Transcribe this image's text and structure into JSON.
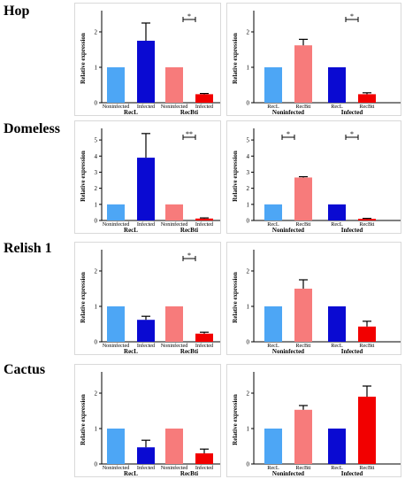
{
  "colors": {
    "light_blue": "#4da6f5",
    "dark_blue": "#0a0ad2",
    "light_red": "#f77b7b",
    "red": "#f20000"
  },
  "ylabel": "Relative expression",
  "genes": [
    "Hop",
    "Domeless",
    "Relish 1",
    "Cactus"
  ],
  "chart_data": [
    {
      "type": "bar",
      "gene": "Hop",
      "layout": "left",
      "ylabel": "Relative expression",
      "ylim": [
        0,
        2.5
      ],
      "yticks": [
        "0",
        "1",
        "2"
      ],
      "ytick_values": [
        0,
        1,
        2
      ],
      "groups": [
        "RecL",
        "RecBti"
      ],
      "bars": [
        {
          "label": "Noninfected",
          "group": "RecL",
          "value": 1.0,
          "error": 0,
          "color": "light_blue"
        },
        {
          "label": "Infected",
          "group": "RecL",
          "value": 1.75,
          "error": 0.5,
          "color": "dark_blue"
        },
        {
          "label": "Noninfected",
          "group": "RecBti",
          "value": 1.0,
          "error": 0,
          "color": "light_red"
        },
        {
          "label": "Infected",
          "group": "RecBti",
          "value": 0.24,
          "error": 0.02,
          "color": "red"
        }
      ],
      "annotations": [
        {
          "text": "*",
          "group": "RecBti"
        }
      ]
    },
    {
      "type": "bar",
      "gene": "Hop",
      "layout": "right",
      "ylabel": "Relative expression",
      "ylim": [
        0,
        2.5
      ],
      "yticks": [
        "0",
        "1",
        "2"
      ],
      "ytick_values": [
        0,
        1,
        2
      ],
      "groups": [
        "Noninfected",
        "Infected"
      ],
      "bars": [
        {
          "label": "RecL",
          "group": "Noninfected",
          "value": 1.0,
          "error": 0,
          "color": "light_blue"
        },
        {
          "label": "RecBti",
          "group": "Noninfected",
          "value": 1.62,
          "error": 0.17,
          "color": "light_red"
        },
        {
          "label": "RecL",
          "group": "Infected",
          "value": 1.0,
          "error": 0,
          "color": "dark_blue"
        },
        {
          "label": "RecBti",
          "group": "Infected",
          "value": 0.24,
          "error": 0.04,
          "color": "red"
        }
      ],
      "annotations": [
        {
          "text": "*",
          "group": "Infected"
        }
      ]
    },
    {
      "type": "bar",
      "gene": "Domeless",
      "layout": "left",
      "ylabel": "Relative expression",
      "ylim": [
        0,
        5.5
      ],
      "yticks": [
        "0",
        "1",
        "2",
        "3",
        "4",
        "5"
      ],
      "ytick_values": [
        0,
        1,
        2,
        3,
        4,
        5
      ],
      "groups": [
        "RecL",
        "RecBti"
      ],
      "bars": [
        {
          "label": "Noninfected",
          "group": "RecL",
          "value": 1.0,
          "error": 0,
          "color": "light_blue"
        },
        {
          "label": "Infected",
          "group": "RecL",
          "value": 3.9,
          "error": 1.5,
          "color": "dark_blue"
        },
        {
          "label": "Noninfected",
          "group": "RecBti",
          "value": 1.0,
          "error": 0,
          "color": "light_red"
        },
        {
          "label": "Infected",
          "group": "RecBti",
          "value": 0.12,
          "error": 0.04,
          "color": "red"
        }
      ],
      "annotations": [
        {
          "text": "**",
          "group": "RecBti"
        }
      ]
    },
    {
      "type": "bar",
      "gene": "Domeless",
      "layout": "right",
      "ylabel": "Relative expression",
      "ylim": [
        0,
        5.5
      ],
      "yticks": [
        "0",
        "1",
        "2",
        "3",
        "4",
        "5"
      ],
      "ytick_values": [
        0,
        1,
        2,
        3,
        4,
        5
      ],
      "groups": [
        "Noninfected",
        "Infected"
      ],
      "bars": [
        {
          "label": "RecL",
          "group": "Noninfected",
          "value": 1.0,
          "error": 0,
          "color": "light_blue"
        },
        {
          "label": "RecBti",
          "group": "Noninfected",
          "value": 2.67,
          "error": 0.05,
          "color": "light_red"
        },
        {
          "label": "RecL",
          "group": "Infected",
          "value": 1.0,
          "error": 0,
          "color": "dark_blue"
        },
        {
          "label": "RecBti",
          "group": "Infected",
          "value": 0.1,
          "error": 0.03,
          "color": "red"
        }
      ],
      "annotations": [
        {
          "text": "*",
          "group": "Noninfected"
        },
        {
          "text": "*",
          "group": "Infected"
        }
      ]
    },
    {
      "type": "bar",
      "gene": "Relish 1",
      "layout": "left",
      "ylabel": "Relative expression",
      "ylim": [
        0,
        2.5
      ],
      "yticks": [
        "0",
        "1",
        "2"
      ],
      "ytick_values": [
        0,
        1,
        2
      ],
      "groups": [
        "RecL",
        "RecBti"
      ],
      "bars": [
        {
          "label": "Noninfected",
          "group": "RecL",
          "value": 1.0,
          "error": 0,
          "color": "light_blue"
        },
        {
          "label": "Infected",
          "group": "RecL",
          "value": 0.62,
          "error": 0.1,
          "color": "dark_blue"
        },
        {
          "label": "Noninfected",
          "group": "RecBti",
          "value": 1.0,
          "error": 0,
          "color": "light_red"
        },
        {
          "label": "Infected",
          "group": "RecBti",
          "value": 0.23,
          "error": 0.04,
          "color": "red"
        }
      ],
      "annotations": [
        {
          "text": "*",
          "group": "RecBti"
        }
      ]
    },
    {
      "type": "bar",
      "gene": "Relish 1",
      "layout": "right",
      "ylabel": "Relative expression",
      "ylim": [
        0,
        2.5
      ],
      "yticks": [
        "0",
        "1",
        "2"
      ],
      "ytick_values": [
        0,
        1,
        2
      ],
      "groups": [
        "Noninfected",
        "Infected"
      ],
      "bars": [
        {
          "label": "RecL",
          "group": "Noninfected",
          "value": 1.0,
          "error": 0,
          "color": "light_blue"
        },
        {
          "label": "RecBti",
          "group": "Noninfected",
          "value": 1.5,
          "error": 0.25,
          "color": "light_red"
        },
        {
          "label": "RecL",
          "group": "Infected",
          "value": 1.0,
          "error": 0,
          "color": "dark_blue"
        },
        {
          "label": "RecBti",
          "group": "Infected",
          "value": 0.43,
          "error": 0.15,
          "color": "red"
        }
      ],
      "annotations": []
    },
    {
      "type": "bar",
      "gene": "Cactus",
      "layout": "left",
      "ylabel": "Relative expression",
      "ylim": [
        0,
        2.5
      ],
      "yticks": [
        "0",
        "1",
        "2"
      ],
      "ytick_values": [
        0,
        1,
        2
      ],
      "groups": [
        "RecL",
        "RecBti"
      ],
      "bars": [
        {
          "label": "Noninfected",
          "group": "RecL",
          "value": 1.0,
          "error": 0,
          "color": "light_blue"
        },
        {
          "label": "Infected",
          "group": "RecL",
          "value": 0.47,
          "error": 0.2,
          "color": "dark_blue"
        },
        {
          "label": "Noninfected",
          "group": "RecBti",
          "value": 1.0,
          "error": 0,
          "color": "light_red"
        },
        {
          "label": "Infected",
          "group": "RecBti",
          "value": 0.3,
          "error": 0.12,
          "color": "red"
        }
      ],
      "annotations": []
    },
    {
      "type": "bar",
      "gene": "Cactus",
      "layout": "right",
      "ylabel": "Relative expression",
      "ylim": [
        0,
        2.5
      ],
      "yticks": [
        "0",
        "1",
        "2"
      ],
      "ytick_values": [
        0,
        1,
        2
      ],
      "groups": [
        "Noninfected",
        "Infected"
      ],
      "bars": [
        {
          "label": "RecL",
          "group": "Noninfected",
          "value": 1.0,
          "error": 0,
          "color": "light_blue"
        },
        {
          "label": "RecBti",
          "group": "Noninfected",
          "value": 1.53,
          "error": 0.12,
          "color": "light_red"
        },
        {
          "label": "RecL",
          "group": "Infected",
          "value": 1.0,
          "error": 0,
          "color": "dark_blue"
        },
        {
          "label": "RecBti",
          "group": "Infected",
          "value": 1.9,
          "error": 0.3,
          "color": "red"
        }
      ],
      "annotations": []
    }
  ]
}
